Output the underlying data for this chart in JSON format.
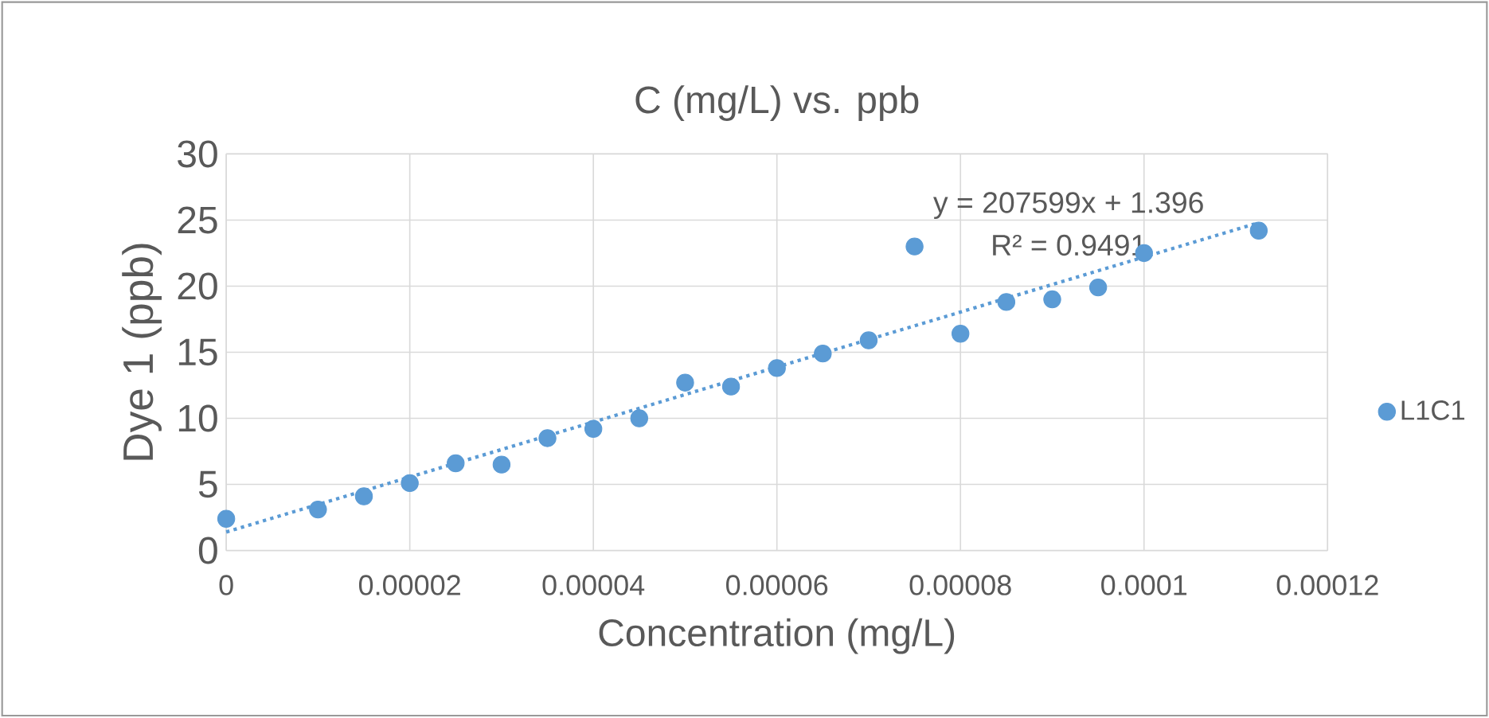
{
  "chart_data": {
    "type": "scatter",
    "title": "C (mg/L) vs. ppb",
    "xlabel": "Concentration (mg/L)",
    "ylabel": "Dye 1 (ppb)",
    "annotations": [
      "y = 207599x + 1.396",
      "R² = 0.9491"
    ],
    "xlim": [
      0,
      0.00012
    ],
    "ylim": [
      0,
      30
    ],
    "xticks": [
      {
        "value": 0,
        "label": "0"
      },
      {
        "value": 2e-05,
        "label": "0.00002"
      },
      {
        "value": 4e-05,
        "label": "0.00004"
      },
      {
        "value": 6e-05,
        "label": "0.00006"
      },
      {
        "value": 8e-05,
        "label": "0.00008"
      },
      {
        "value": 0.0001,
        "label": "0.0001"
      },
      {
        "value": 0.00012,
        "label": "0.00012"
      }
    ],
    "yticks": [
      0,
      5,
      10,
      15,
      20,
      25,
      30
    ],
    "grid": true,
    "legend": "right",
    "series": [
      {
        "name": "L1C1",
        "color": "#5b9bd5",
        "marker": "circle",
        "x": [
          0,
          1e-05,
          1.5e-05,
          2e-05,
          2.5e-05,
          3e-05,
          3.5e-05,
          4e-05,
          4.5e-05,
          5e-05,
          5.5e-05,
          6e-05,
          6.5e-05,
          7e-05,
          7.5e-05,
          8e-05,
          8.5e-05,
          9e-05,
          9.5e-05,
          0.0001,
          0.0001125
        ],
        "values": [
          2.4,
          3.1,
          4.1,
          5.1,
          6.6,
          6.5,
          8.5,
          9.2,
          10.0,
          12.7,
          12.4,
          13.8,
          14.9,
          15.9,
          23.0,
          16.4,
          18.8,
          19.0,
          19.9,
          22.5,
          24.2
        ]
      },
      {
        "type": "line",
        "color": "#5b9bd5",
        "marker": "none",
        "line_style": "dotted",
        "x": [
          0,
          0.0001125
        ],
        "values": [
          1.4,
          24.8
        ]
      }
    ]
  }
}
